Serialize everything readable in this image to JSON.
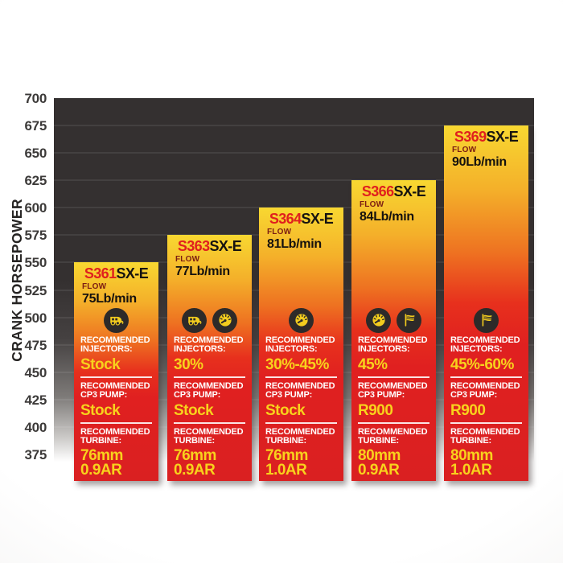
{
  "axis": {
    "title": "CRANK HORSEPOWER",
    "ticks": [
      "700",
      "675",
      "650",
      "625",
      "600",
      "575",
      "550",
      "525",
      "500",
      "475",
      "450",
      "425",
      "400",
      "375"
    ]
  },
  "labels": {
    "flow": "FLOW",
    "recommended": "RECOMMENDED",
    "injectors": "INJECTORS:",
    "cp3_pump": "CP3 PUMP:",
    "turbine": "TURBINE:"
  },
  "colors": {
    "plot_bg_dark": "#343030",
    "bar_top_yellow": "#f8d831",
    "bar_red": "#e02020",
    "model_red": "#e0201e",
    "value_yellow": "#f8d21c",
    "label_white": "#ffffff",
    "flow_maroon": "#7c1d13",
    "icon_circle_dark": "#2d2a29"
  },
  "bars": [
    {
      "model": "S361",
      "series": "SX-E",
      "flow": "75Lb/min",
      "max_hp": 550,
      "icons": [
        "rv-camper"
      ],
      "injectors": "Stock",
      "cp3": "Stock",
      "turbine_mm": "76mm",
      "turbine_ar": "0.9AR"
    },
    {
      "model": "S363",
      "series": "SX-E",
      "flow": "77Lb/min",
      "max_hp": 575,
      "icons": [
        "rv-camper",
        "gauge"
      ],
      "injectors": "30%",
      "cp3": "Stock",
      "turbine_mm": "76mm",
      "turbine_ar": "0.9AR"
    },
    {
      "model": "S364",
      "series": "SX-E",
      "flow": "81Lb/min",
      "max_hp": 600,
      "icons": [
        "gauge"
      ],
      "injectors": "30%-45%",
      "cp3": "Stock",
      "turbine_mm": "76mm",
      "turbine_ar": "1.0AR"
    },
    {
      "model": "S366",
      "series": "SX-E",
      "flow": "84Lb/min",
      "max_hp": 625,
      "icons": [
        "gauge",
        "flag"
      ],
      "injectors": "45%",
      "cp3": "R900",
      "turbine_mm": "80mm",
      "turbine_ar": "0.9AR"
    },
    {
      "model": "S369",
      "series": "SX-E",
      "flow": "90Lb/min",
      "max_hp": 675,
      "icons": [
        "flag"
      ],
      "injectors": "45%-60%",
      "cp3": "R900",
      "turbine_mm": "80mm",
      "turbine_ar": "1.0AR"
    }
  ],
  "chart_data": {
    "type": "bar",
    "title": "",
    "ylabel": "CRANK HORSEPOWER",
    "xlabel": "",
    "ylim": [
      375,
      700
    ],
    "ytick_interval": 25,
    "grid": true,
    "background": "dark",
    "legend_position": "none",
    "categories": [
      "S361SX-E",
      "S363SX-E",
      "S364SX-E",
      "S366SX-E",
      "S369SX-E"
    ],
    "values": [
      550,
      575,
      600,
      625,
      675
    ],
    "value_meaning": "bar top = max crank horsepower",
    "series": [
      {
        "name": "S361SX-E",
        "max_hp": 550,
        "flow": "75Lb/min",
        "recommended_injectors": "Stock",
        "recommended_cp3_pump": "Stock",
        "recommended_turbine": "76mm 0.9AR",
        "usage_icons": [
          "rv-camper"
        ]
      },
      {
        "name": "S363SX-E",
        "max_hp": 575,
        "flow": "77Lb/min",
        "recommended_injectors": "30%",
        "recommended_cp3_pump": "Stock",
        "recommended_turbine": "76mm 0.9AR",
        "usage_icons": [
          "rv-camper",
          "gauge"
        ]
      },
      {
        "name": "S364SX-E",
        "max_hp": 600,
        "flow": "81Lb/min",
        "recommended_injectors": "30%-45%",
        "recommended_cp3_pump": "Stock",
        "recommended_turbine": "76mm 1.0AR",
        "usage_icons": [
          "gauge"
        ]
      },
      {
        "name": "S366SX-E",
        "max_hp": 625,
        "flow": "84Lb/min",
        "recommended_injectors": "45%",
        "recommended_cp3_pump": "R900",
        "recommended_turbine": "80mm 0.9AR",
        "usage_icons": [
          "gauge",
          "flag"
        ]
      },
      {
        "name": "S369SX-E",
        "max_hp": 675,
        "flow": "90Lb/min",
        "recommended_injectors": "45%-60%",
        "recommended_cp3_pump": "R900",
        "recommended_turbine": "80mm 1.0AR",
        "usage_icons": [
          "flag"
        ]
      }
    ]
  }
}
